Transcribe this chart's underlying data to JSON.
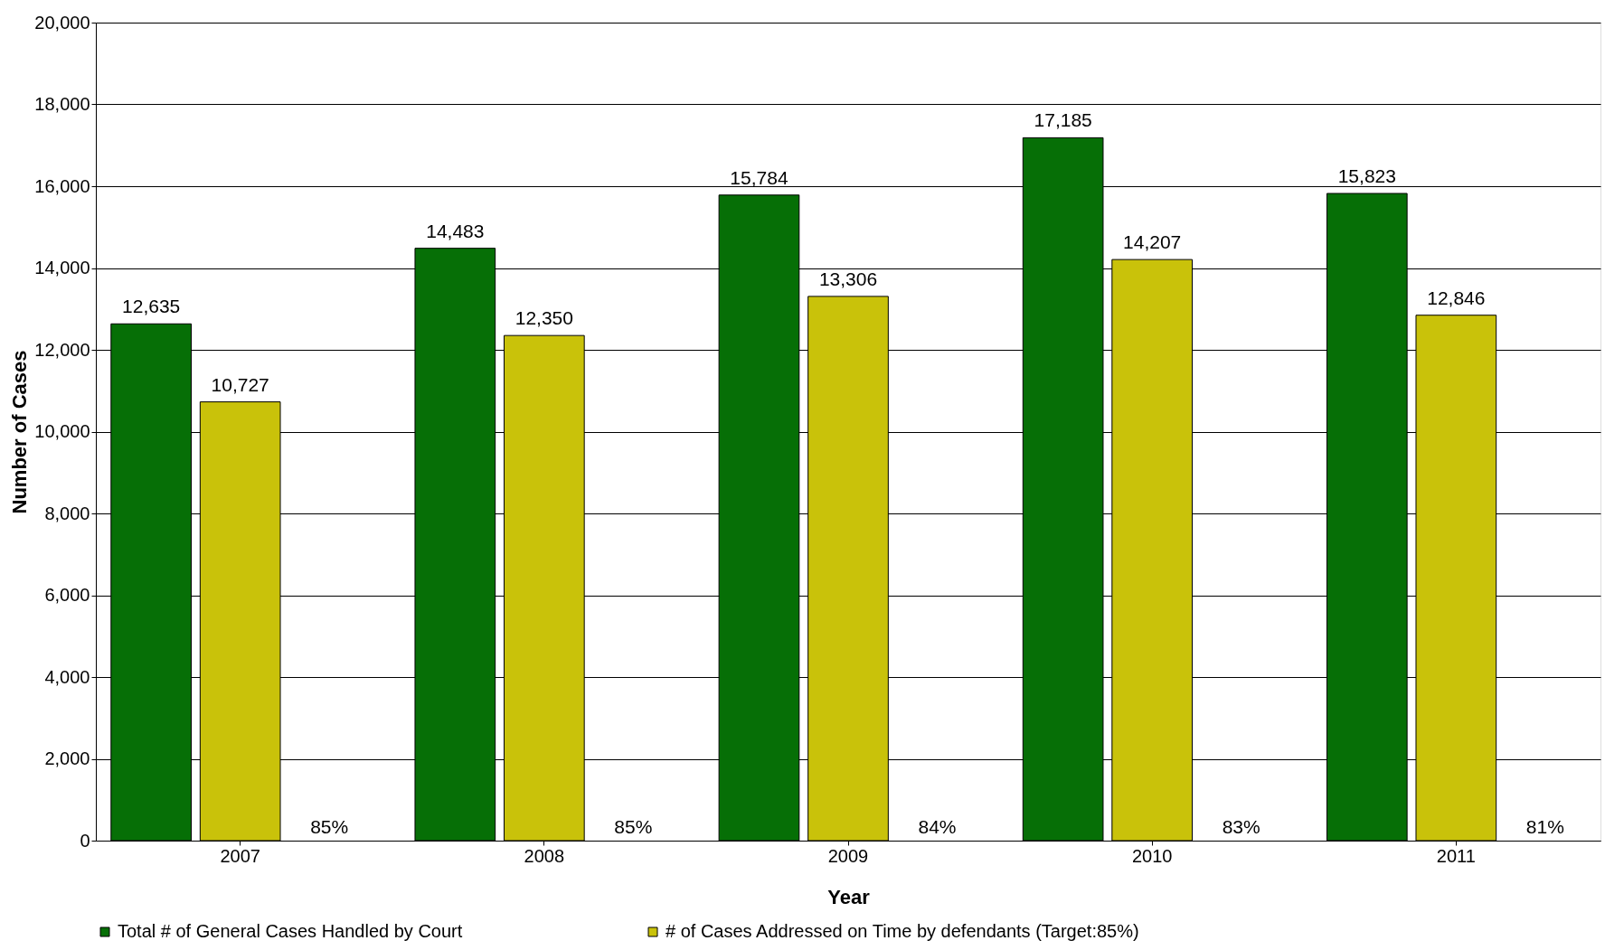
{
  "chart_data": {
    "type": "bar",
    "xlabel": "Year",
    "ylabel": "Number of Cases",
    "categories": [
      "2007",
      "2008",
      "2009",
      "2010",
      "2011"
    ],
    "series": [
      {
        "name": "Total # of General Cases Handled by Court",
        "color": "#066f06",
        "values": [
          12635,
          14483,
          15784,
          17185,
          15823
        ],
        "value_labels": [
          "12,635",
          "14,483",
          "15,784",
          "17,185",
          "15,823"
        ]
      },
      {
        "name": "# of Cases Addressed on Time by defendants (Target:85%)",
        "color": "#c9c20a",
        "values": [
          10727,
          12350,
          13306,
          14207,
          12846
        ],
        "value_labels": [
          "10,727",
          "12,350",
          "13,306",
          "14,207",
          "12,846"
        ]
      }
    ],
    "ylim": [
      0,
      20000
    ],
    "yticks": [
      0,
      {
        "value": 2000,
        "label": "2,000"
      },
      {
        "value": 4000,
        "label": "4,000"
      },
      {
        "value": 6000,
        "label": "6,000"
      },
      {
        "value": 8000,
        "label": "8,000"
      },
      {
        "value": 10000,
        "label": "10,000"
      },
      {
        "value": 12000,
        "label": "12,000"
      },
      {
        "value": 14000,
        "label": "14,000"
      },
      {
        "value": 16000,
        "label": "16,000"
      },
      {
        "value": 18000,
        "label": "18,000"
      },
      {
        "value": 20000,
        "label": "20,000"
      }
    ],
    "grid": "y",
    "legend": "bottom",
    "annotations": [
      "85%",
      "85%",
      "84%",
      "83%",
      "81%"
    ]
  }
}
